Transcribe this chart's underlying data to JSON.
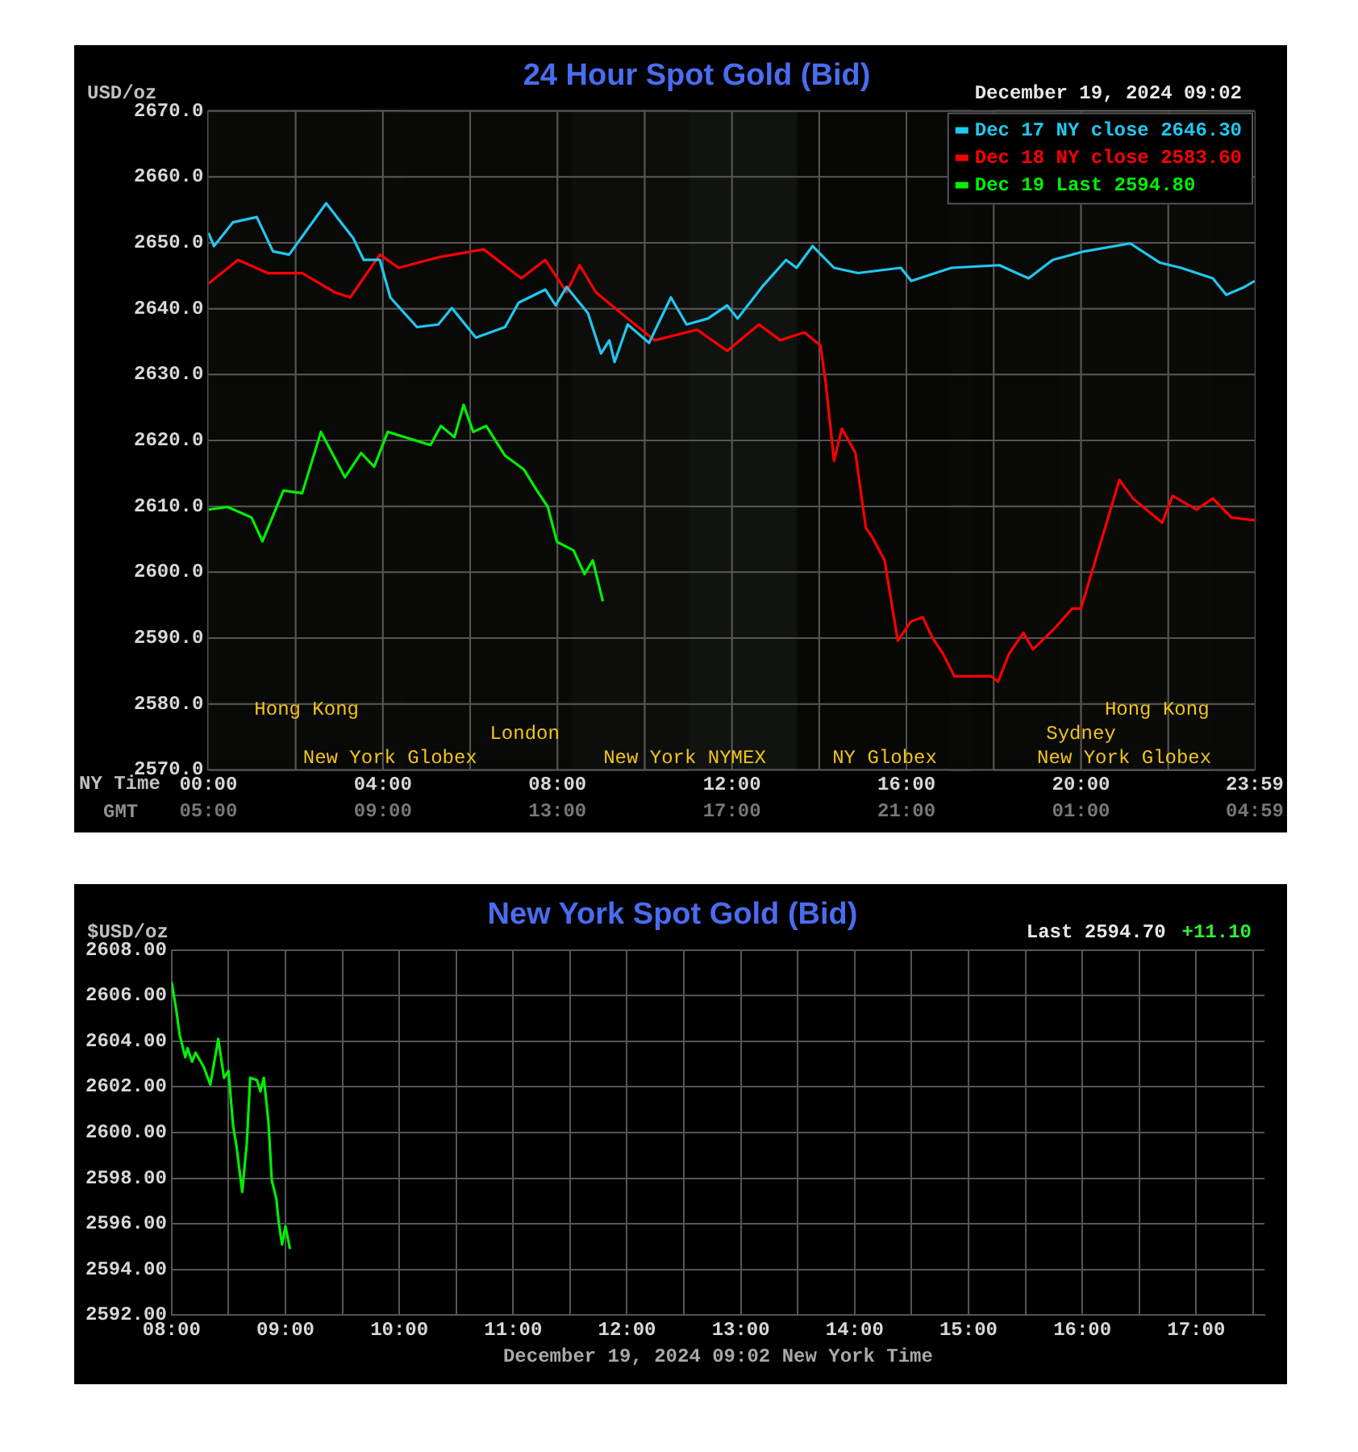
{
  "chart_data": [
    {
      "type": "line",
      "title": "24 Hour Spot Gold (Bid)",
      "ylabel": "USD/oz",
      "xlabel": "NY Time",
      "x2label": "GMT",
      "annotations": [
        "December 19, 2024 09:02"
      ],
      "xlim": [
        0,
        23.983
      ],
      "xticks": [
        {
          "value": 0,
          "label": "00:00"
        },
        {
          "value": 2,
          "label": null
        },
        {
          "value": 4,
          "label": "04:00"
        },
        {
          "value": 6,
          "label": null
        },
        {
          "value": 8,
          "label": "08:00"
        },
        {
          "value": 10,
          "label": null
        },
        {
          "value": 12,
          "label": "12:00"
        },
        {
          "value": 14,
          "label": null
        },
        {
          "value": 16,
          "label": "16:00"
        },
        {
          "value": 18,
          "label": null
        },
        {
          "value": 20,
          "label": "20:00"
        },
        {
          "value": 22,
          "label": null
        },
        {
          "value": 23.983,
          "label": "23:59"
        }
      ],
      "x2lim": [
        "2024-12-19T05:00",
        "2024-12-20T04:59"
      ],
      "x2ticks": [
        {
          "value": "2024-12-19T05:00",
          "label": "05:00"
        },
        {
          "value": "2024-12-19T09:00",
          "label": "09:00"
        },
        {
          "value": "2024-12-19T13:00",
          "label": "13:00"
        },
        {
          "value": "2024-12-19T17:00",
          "label": "17:00"
        },
        {
          "value": "2024-12-19T21:00",
          "label": "21:00"
        },
        {
          "value": "2024-12-20T01:00",
          "label": "01:00"
        },
        {
          "value": "2024-12-20T04:59",
          "label": "04:59"
        }
      ],
      "ylim": [
        2570,
        2670
      ],
      "yticks": [
        {
          "value": 2570,
          "label": "2570.0"
        },
        {
          "value": 2580,
          "label": "2580.0"
        },
        {
          "value": 2590,
          "label": "2590.0"
        },
        {
          "value": 2600,
          "label": "2600.0"
        },
        {
          "value": 2610,
          "label": "2610.0"
        },
        {
          "value": 2620,
          "label": "2620.0"
        },
        {
          "value": 2630,
          "label": "2630.0"
        },
        {
          "value": 2640,
          "label": "2640.0"
        },
        {
          "value": 2650,
          "label": "2650.0"
        },
        {
          "value": 2660,
          "label": "2660.0"
        },
        {
          "value": 2670,
          "label": "2670.0"
        }
      ],
      "grid": true,
      "legend": "top right",
      "bands": [
        {
          "axis": "x",
          "from": 0,
          "to": 8.33,
          "label": "New York Globex",
          "color": "#0b0b08"
        },
        {
          "axis": "x",
          "from": 8.33,
          "to": 13.5,
          "label": "New York NYMEX",
          "color": "#1c1f1a"
        },
        {
          "axis": "x",
          "from": 13.5,
          "to": 17.5,
          "label": "NY Globex",
          "color": "#0b0b08"
        },
        {
          "axis": "x",
          "from": 18,
          "to": 23.983,
          "label": "New York Globex",
          "color": "#0b0b08"
        },
        {
          "axis": "x",
          "from": 3.5,
          "to": 11,
          "label": "London",
          "color": "#0b0b08"
        },
        {
          "axis": "x",
          "from": 17,
          "to": 23,
          "label": "Sydney",
          "color": "#0b0b08"
        },
        {
          "axis": "x",
          "from": 0,
          "to": 4.5,
          "label": "Hong Kong",
          "color": "#0b0b08"
        },
        {
          "axis": "x",
          "from": 19.5,
          "to": 23.983,
          "label": "Hong Kong",
          "color": "#0b0b08"
        }
      ],
      "series": [
        {
          "name": "Dec 17 NY close 2646.30",
          "color": "#20c8f0",
          "x": [
            0,
            0.13,
            0.56,
            1.11,
            1.48,
            1.85,
            2.7,
            3.32,
            3.56,
            3.93,
            4.17,
            4.78,
            5.27,
            5.58,
            6.13,
            6.8,
            7.11,
            7.72,
            7.96,
            8.21,
            8.7,
            9.0,
            9.19,
            9.31,
            9.61,
            10.1,
            10.6,
            10.96,
            11.45,
            11.89,
            12.13,
            12.69,
            13.24,
            13.48,
            13.85,
            14.34,
            14.89,
            15.87,
            16.11,
            17.03,
            18.13,
            18.8,
            19.35,
            20.08,
            21.13,
            21.8,
            22.29,
            23.02,
            23.33,
            23.75,
            23.98
          ],
          "values": [
            2651.5,
            2649.5,
            2653.1,
            2653.9,
            2648.7,
            2648.2,
            2656.0,
            2650.7,
            2647.4,
            2647.4,
            2641.7,
            2637.2,
            2637.6,
            2640.1,
            2635.6,
            2637.2,
            2640.9,
            2642.9,
            2640.5,
            2643.3,
            2639.3,
            2633.2,
            2635.2,
            2631.9,
            2637.6,
            2634.8,
            2641.7,
            2637.6,
            2638.5,
            2640.5,
            2638.5,
            2643.3,
            2647.4,
            2646.2,
            2649.5,
            2646.2,
            2645.4,
            2646.2,
            2644.2,
            2646.2,
            2646.6,
            2644.6,
            2647.4,
            2648.7,
            2649.9,
            2647.0,
            2646.2,
            2644.6,
            2642.1,
            2643.3,
            2644.2
          ]
        },
        {
          "name": "Dec 18 NY close 2583.60",
          "color": "#ff0000",
          "x": [
            0,
            0.68,
            1.36,
            2.15,
            2.89,
            3.25,
            3.93,
            4.36,
            5.27,
            6.31,
            7.17,
            7.72,
            8.21,
            8.51,
            8.88,
            9.61,
            10.23,
            11.2,
            11.89,
            12.62,
            13.11,
            13.66,
            14.03,
            14.15,
            14.34,
            14.52,
            14.83,
            15.07,
            15.2,
            15.5,
            15.8,
            16.1,
            16.37,
            16.6,
            16.84,
            17.1,
            17.94,
            18.1,
            18.35,
            18.68,
            18.9,
            19.4,
            19.8,
            20.0,
            20.33,
            20.88,
            21.19,
            21.86,
            22.1,
            22.65,
            23.02,
            23.45,
            23.98
          ],
          "values": [
            2643.8,
            2647.4,
            2645.4,
            2645.4,
            2642.5,
            2641.7,
            2648.2,
            2646.2,
            2647.8,
            2649.0,
            2644.6,
            2647.4,
            2642.5,
            2646.6,
            2642.5,
            2638.5,
            2635.2,
            2636.8,
            2633.6,
            2637.6,
            2635.2,
            2636.4,
            2634.4,
            2628.7,
            2616.9,
            2621.8,
            2618.1,
            2606.7,
            2605.5,
            2601.8,
            2589.6,
            2592.5,
            2593.2,
            2590.0,
            2587.6,
            2584.2,
            2584.2,
            2583.4,
            2587.6,
            2590.8,
            2588.3,
            2591.5,
            2594.5,
            2594.5,
            2601.8,
            2614.0,
            2611.2,
            2607.5,
            2611.6,
            2609.5,
            2611.2,
            2608.3,
            2607.9
          ]
        },
        {
          "name": "Dec 19 Last 2594.80",
          "color": "#00f000",
          "x": [
            0,
            0.44,
            0.99,
            1.24,
            1.72,
            2.15,
            2.58,
            3.13,
            3.5,
            3.8,
            4.11,
            5.09,
            5.33,
            5.64,
            5.85,
            6.07,
            6.37,
            6.8,
            7.23,
            7.53,
            7.78,
            7.99,
            8.37,
            8.62,
            8.81,
            9.04
          ],
          "values": [
            2609.5,
            2609.9,
            2608.3,
            2604.7,
            2612.4,
            2612.0,
            2621.3,
            2614.4,
            2618.1,
            2616.0,
            2621.3,
            2619.3,
            2622.2,
            2620.5,
            2625.4,
            2621.3,
            2622.2,
            2617.7,
            2615.6,
            2612.4,
            2609.9,
            2604.6,
            2603.3,
            2599.7,
            2601.8,
            2595.6
          ]
        }
      ]
    },
    {
      "type": "line",
      "title": "New York Spot Gold (Bid)",
      "ylabel": "$USD/oz",
      "xlabel": "December 19, 2024 09:02 New York Time",
      "annotations": [
        "Last 2594.70",
        "+11.10"
      ],
      "xlim": [
        8,
        17.6
      ],
      "xticks": [
        {
          "value": 8,
          "label": "08:00"
        },
        {
          "value": 8.5,
          "label": null
        },
        {
          "value": 9,
          "label": "09:00"
        },
        {
          "value": 9.5,
          "label": null
        },
        {
          "value": 10,
          "label": "10:00"
        },
        {
          "value": 10.5,
          "label": null
        },
        {
          "value": 11,
          "label": "11:00"
        },
        {
          "value": 11.5,
          "label": null
        },
        {
          "value": 12,
          "label": "12:00"
        },
        {
          "value": 12.5,
          "label": null
        },
        {
          "value": 13,
          "label": "13:00"
        },
        {
          "value": 13.5,
          "label": null
        },
        {
          "value": 14,
          "label": "14:00"
        },
        {
          "value": 14.5,
          "label": null
        },
        {
          "value": 15,
          "label": "15:00"
        },
        {
          "value": 15.5,
          "label": null
        },
        {
          "value": 16,
          "label": "16:00"
        },
        {
          "value": 16.5,
          "label": null
        },
        {
          "value": 17,
          "label": "17:00"
        },
        {
          "value": 17.5,
          "label": null
        }
      ],
      "ylim": [
        2592,
        2608
      ],
      "yticks": [
        {
          "value": 2592,
          "label": "2592.00"
        },
        {
          "value": 2594,
          "label": "2594.00"
        },
        {
          "value": 2596,
          "label": "2596.00"
        },
        {
          "value": 2598,
          "label": "2598.00"
        },
        {
          "value": 2600,
          "label": "2600.00"
        },
        {
          "value": 2602,
          "label": "2602.00"
        },
        {
          "value": 2604,
          "label": "2604.00"
        },
        {
          "value": 2606,
          "label": "2606.00"
        },
        {
          "value": 2608,
          "label": "2608.00"
        }
      ],
      "grid": true,
      "series": [
        {
          "color": "#00f000",
          "x": [
            8.0,
            8.04,
            8.07,
            8.12,
            8.14,
            8.18,
            8.21,
            8.28,
            8.34,
            8.41,
            8.46,
            8.5,
            8.54,
            8.57,
            8.62,
            8.66,
            8.69,
            8.75,
            8.78,
            8.81,
            8.85,
            8.88,
            8.92,
            8.94,
            8.97,
            9.0,
            9.04
          ],
          "values": [
            2606.6,
            2605.4,
            2604.3,
            2603.3,
            2603.7,
            2603.1,
            2603.5,
            2602.9,
            2602.1,
            2604.1,
            2602.4,
            2602.7,
            2600.3,
            2599.4,
            2597.4,
            2599.5,
            2602.4,
            2602.3,
            2601.8,
            2602.4,
            2600.5,
            2597.9,
            2597.1,
            2596.1,
            2595.1,
            2595.9,
            2594.9
          ]
        }
      ]
    }
  ]
}
